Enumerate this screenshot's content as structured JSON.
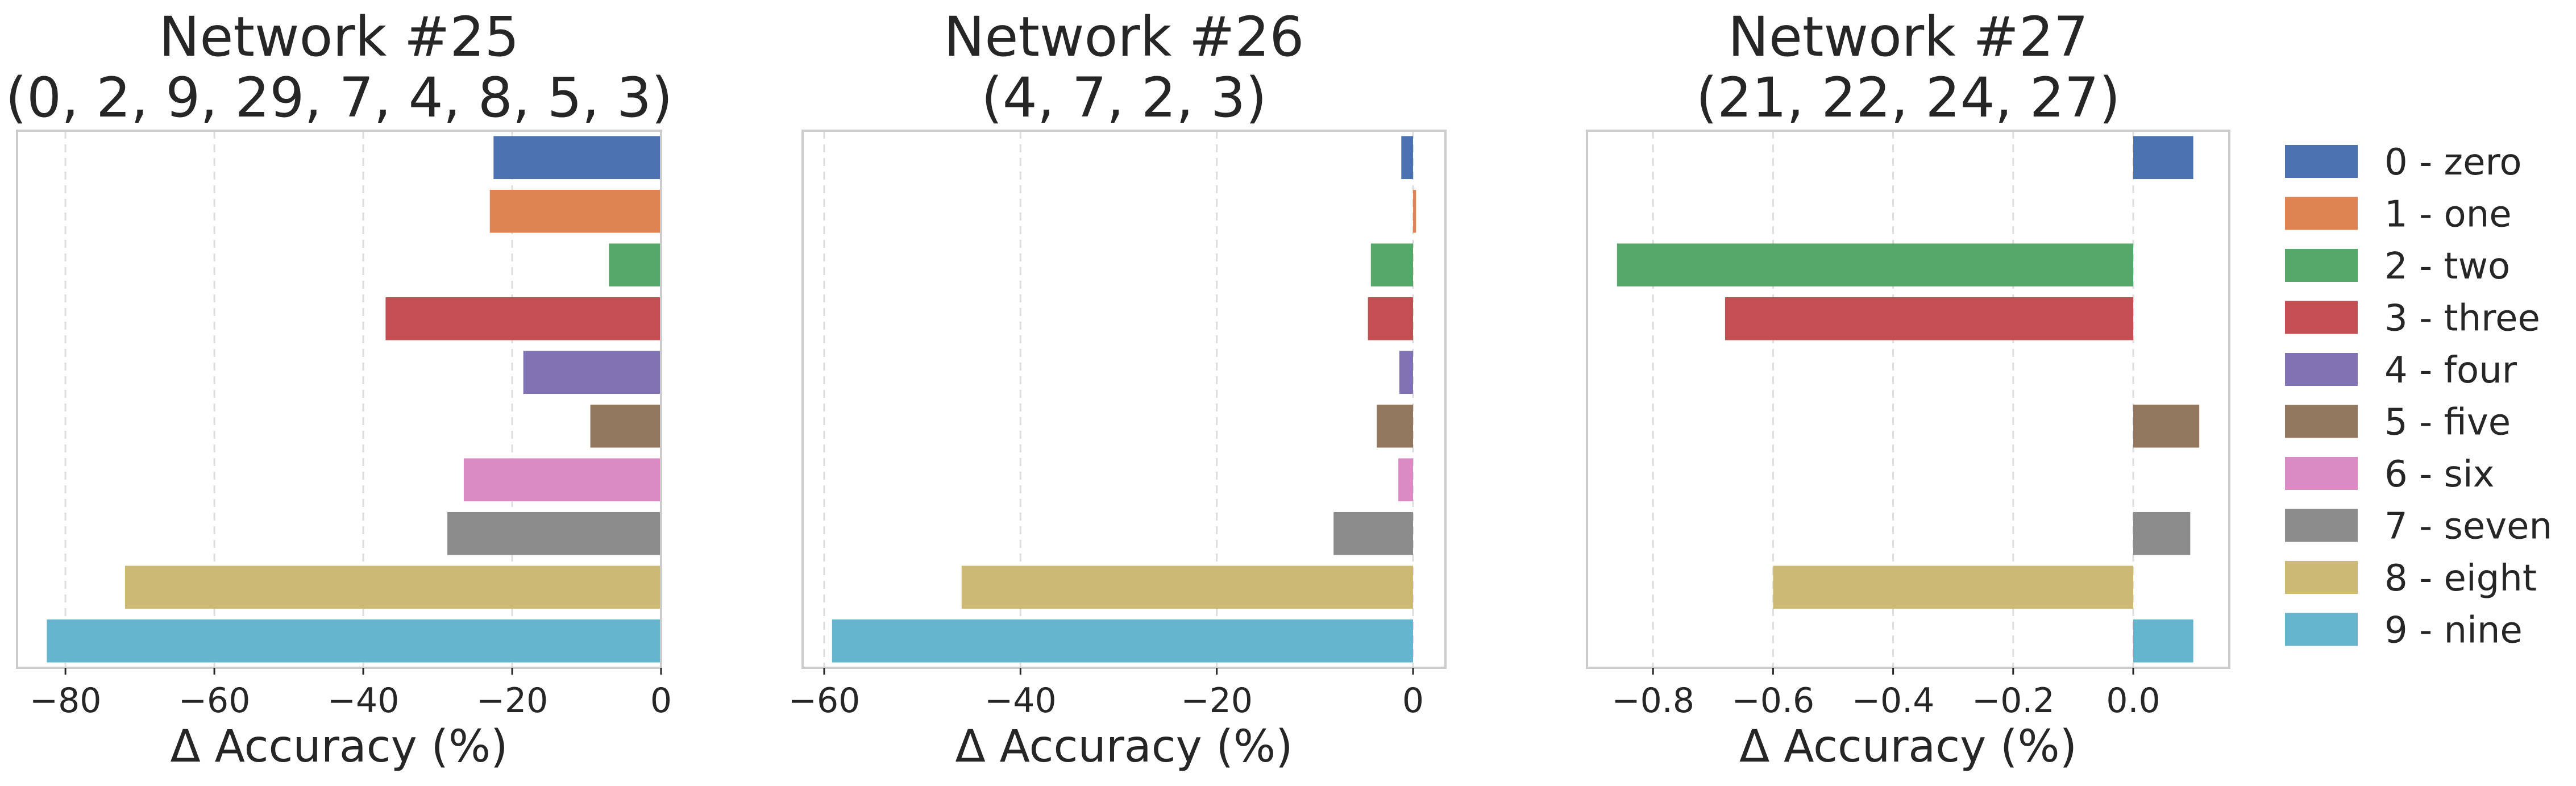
{
  "legend": {
    "entries": [
      "0 - zero",
      "1 - one",
      "2 - two",
      "3 - three",
      "4 - four",
      "5 - five",
      "6 - six",
      "7 - seven",
      "8 - eight",
      "9 - nine"
    ],
    "placement": "right"
  },
  "colors": [
    "#4C72B0",
    "#DD8452",
    "#55A868",
    "#C44E52",
    "#8172B3",
    "#937860",
    "#DA8BC3",
    "#8C8C8C",
    "#CCB974",
    "#64B5CD"
  ],
  "chart_data": [
    {
      "type": "bar",
      "orientation": "horizontal",
      "title": [
        "Network #25",
        "(0, 2, 9, 29, 7, 4, 8, 5, 3)"
      ],
      "xlabel": "Δ Accuracy (%)",
      "ylabel": "",
      "categories": [
        "0 - zero",
        "1 - one",
        "2 - two",
        "3 - three",
        "4 - four",
        "5 - five",
        "6 - six",
        "7 - seven",
        "8 - eight",
        "9 - nine"
      ],
      "values": [
        -22.5,
        -23.0,
        -7.0,
        -37.0,
        -18.5,
        -9.5,
        -26.5,
        -28.7,
        -72.0,
        -82.5
      ],
      "xlim": [
        -86.5,
        0
      ],
      "xticks": [
        -80,
        -60,
        -40,
        -20,
        0
      ],
      "xtick_labels": [
        "−80",
        "−60",
        "−40",
        "−20",
        "0"
      ],
      "grid": "x-dashed"
    },
    {
      "type": "bar",
      "orientation": "horizontal",
      "title": [
        "Network #26",
        "(4, 7, 2, 3)"
      ],
      "xlabel": "Δ Accuracy (%)",
      "ylabel": "",
      "categories": [
        "0 - zero",
        "1 - one",
        "2 - two",
        "3 - three",
        "4 - four",
        "5 - five",
        "6 - six",
        "7 - seven",
        "8 - eight",
        "9 - nine"
      ],
      "values": [
        -1.2,
        0.3,
        -4.3,
        -4.6,
        -1.4,
        -3.7,
        -1.5,
        -8.1,
        -46.0,
        -59.2
      ],
      "xlim": [
        -62.2,
        3.3
      ],
      "xticks": [
        -60,
        -40,
        -20,
        0
      ],
      "xtick_labels": [
        "−60",
        "−40",
        "−20",
        "0"
      ],
      "grid": "x-dashed"
    },
    {
      "type": "bar",
      "orientation": "horizontal",
      "title": [
        "Network #27",
        "(21, 22, 24, 27)"
      ],
      "xlabel": "Δ Accuracy (%)",
      "ylabel": "",
      "categories": [
        "0 - zero",
        "1 - one",
        "2 - two",
        "3 - three",
        "4 - four",
        "5 - five",
        "6 - six",
        "7 - seven",
        "8 - eight",
        "9 - nine"
      ],
      "values": [
        0.1,
        0.0,
        -0.86,
        -0.68,
        0.0,
        0.11,
        0.0,
        0.095,
        -0.6,
        0.1
      ],
      "xlim": [
        -0.91,
        0.16
      ],
      "xticks": [
        -0.8,
        -0.6,
        -0.4,
        -0.2,
        0.0
      ],
      "xtick_labels": [
        "−0.8",
        "−0.6",
        "−0.4",
        "−0.2",
        "0.0"
      ],
      "grid": "x-dashed"
    }
  ]
}
